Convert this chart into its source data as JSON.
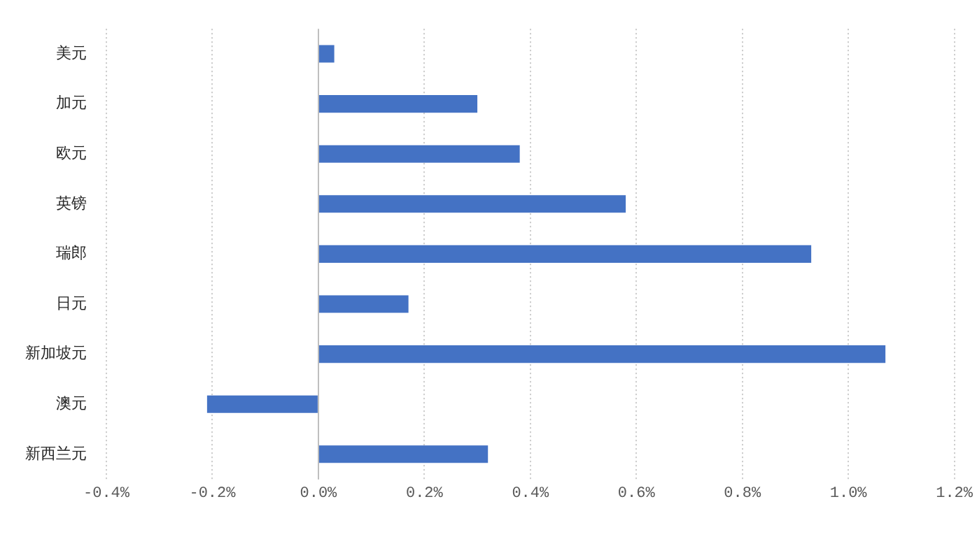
{
  "chart_data": {
    "type": "bar",
    "orientation": "horizontal",
    "categories": [
      "美元",
      "加元",
      "欧元",
      "英镑",
      "瑞郎",
      "日元",
      "新加坡元",
      "澳元",
      "新西兰元"
    ],
    "values": [
      0.03,
      0.3,
      0.38,
      0.58,
      0.93,
      0.17,
      1.07,
      -0.21,
      0.32
    ],
    "color": "#4472c4",
    "xlim": [
      -0.4,
      1.2
    ],
    "xticks": [
      {
        "value": -0.4,
        "label": "-0.4%"
      },
      {
        "value": -0.2,
        "label": "-0.2%"
      },
      {
        "value": 0,
        "label": "0.0%"
      },
      {
        "value": 0.2,
        "label": "0.2%"
      },
      {
        "value": 0.4,
        "label": "0.4%"
      },
      {
        "value": 0.6,
        "label": "0.6%"
      },
      {
        "value": 0.8,
        "label": "0.8%"
      },
      {
        "value": 1.0,
        "label": "1.0%"
      },
      {
        "value": 1.2,
        "label": "1.2%"
      }
    ],
    "grid": "x",
    "legend": false
  }
}
